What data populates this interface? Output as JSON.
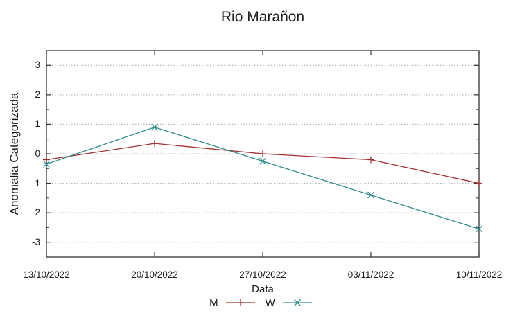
{
  "chart_data": {
    "type": "line",
    "title": "Rio Marañon",
    "xlabel": "Data",
    "ylabel": "Anomalia Categorizada",
    "categories": [
      "13/10/2022",
      "20/10/2022",
      "27/10/2022",
      "03/11/2022",
      "10/11/2022"
    ],
    "series": [
      {
        "name": "M",
        "color": "#a52f2f",
        "marker": "plus",
        "values": [
          -0.2,
          0.35,
          0.0,
          -0.2,
          -1.0
        ]
      },
      {
        "name": "W",
        "color": "#2e8b8b",
        "marker": "cross",
        "values": [
          -0.35,
          0.9,
          -0.25,
          -1.4,
          -2.55
        ]
      }
    ],
    "y_ticks": [
      3,
      2,
      1,
      0,
      -1,
      -2,
      -3
    ],
    "ylim": [
      -3.5,
      3.5
    ],
    "minor_tick_step": 0.5,
    "grid": "y-dotted",
    "legend_position": "bottom-center",
    "colors": {
      "axis": "#333333",
      "grid": "#a6a6a6",
      "text": "#1a1a1a"
    }
  }
}
